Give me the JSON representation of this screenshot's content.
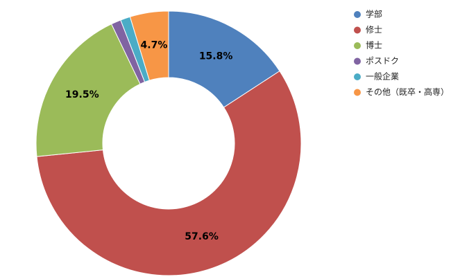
{
  "chart_data": {
    "type": "donut",
    "categories": [
      "学部",
      "修士",
      "博士",
      "ポスドク",
      "一般企業",
      "その他（既卒・高専）"
    ],
    "values": [
      15.8,
      57.6,
      19.5,
      1.2,
      1.2,
      4.7
    ],
    "value_labels": [
      "15.8%",
      "57.6%",
      "19.5%",
      null,
      null,
      "4.7%"
    ],
    "colors": [
      "#4f81bd",
      "#c0504d",
      "#9bbb59",
      "#8064a2",
      "#4bacc6",
      "#f79646"
    ],
    "legend": "top-right"
  }
}
